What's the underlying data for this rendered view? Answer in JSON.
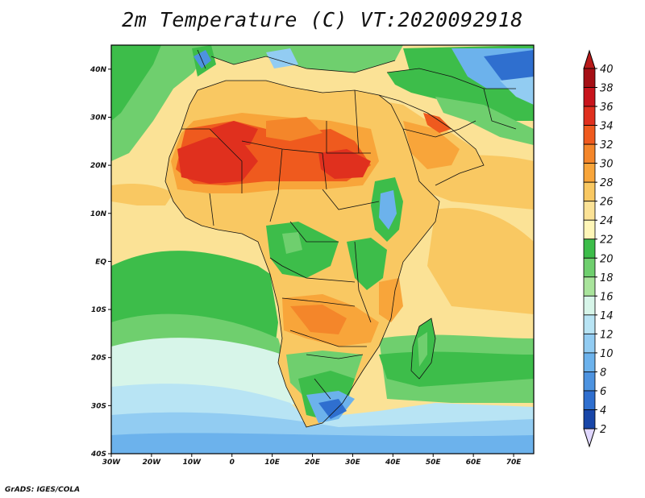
{
  "title": "2m Temperature (C) VT:2020092918",
  "credit": "GrADS: IGES/COLA",
  "map": {
    "lon_ticks": [
      "30W",
      "20W",
      "10W",
      "0",
      "10E",
      "20E",
      "30E",
      "40E",
      "50E",
      "60E",
      "70E"
    ],
    "lat_ticks": [
      "40N",
      "30N",
      "20N",
      "10N",
      "EQ",
      "10S",
      "20S",
      "30S",
      "40S"
    ],
    "extent": {
      "lon_min": -30,
      "lon_max": 75,
      "lat_min": -40,
      "lat_max": 45
    }
  },
  "colorbar": {
    "levels": [
      "40",
      "38",
      "36",
      "34",
      "32",
      "30",
      "28",
      "26",
      "24",
      "22",
      "20",
      "18",
      "16",
      "14",
      "12",
      "10",
      "8",
      "6",
      "4",
      "2"
    ],
    "colors": [
      "#a50f15",
      "#c8141c",
      "#e0301e",
      "#ef5a1e",
      "#f4862a",
      "#f8a53a",
      "#f9c862",
      "#fbe296",
      "#fff6b8",
      "#3dbd4a",
      "#6fcf6e",
      "#a9e49c",
      "#d7f5e9",
      "#b8e4f4",
      "#92ccf2",
      "#6cb2ec",
      "#4d93e0",
      "#2f6fcf",
      "#1846a8",
      "#0a1f7a"
    ],
    "top_color": "#b81a1a",
    "bottom_color": "#e0d7ff"
  }
}
